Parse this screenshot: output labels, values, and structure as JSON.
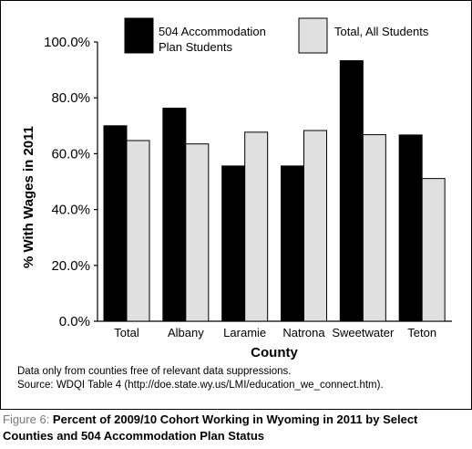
{
  "chart_data": {
    "type": "bar",
    "title": "",
    "xlabel": "County",
    "ylabel": "% With Wages in 2011",
    "categories": [
      "Total",
      "Albany",
      "Laramie",
      "Natrona",
      "Sweetwater",
      "Teton"
    ],
    "series": [
      {
        "name": "504 Accommodation Plan Students",
        "color": "#000000",
        "values": [
          70.0,
          76.3,
          55.6,
          55.6,
          93.3,
          66.7
        ]
      },
      {
        "name": "Total, All Students",
        "color": "#e0e0e0",
        "values": [
          64.7,
          63.5,
          67.7,
          68.3,
          66.8,
          51.1
        ]
      }
    ],
    "ylim": [
      0,
      100
    ],
    "yticks": [
      "0.0%",
      "20.0%",
      "40.0%",
      "60.0%",
      "80.0%",
      "100.0%"
    ],
    "legend_position": "top",
    "grid": false
  },
  "notes": {
    "line1": "Data only from counties free of relevant data suppressions.",
    "line2": "Source: WDQI Table 4 (http://doe.state.wy.us/LMI/education_we_connect.htm)."
  },
  "caption": {
    "label": "Figure 6: ",
    "text": "Percent of 2009/10 Cohort Working in Wyoming in 2011 by Select Counties and 504 Accommodation Plan Status"
  }
}
